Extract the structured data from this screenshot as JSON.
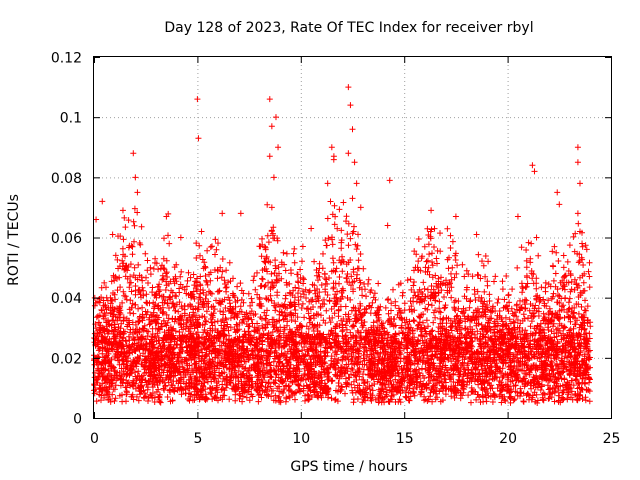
{
  "chart_data": {
    "type": "scatter",
    "title": "Day 128 of 2023, Rate Of TEC Index for receiver rbyl",
    "xlabel": "GPS time / hours",
    "ylabel": "ROTI / TECUs",
    "xlim": [
      0,
      25
    ],
    "ylim": [
      0,
      0.12
    ],
    "xticks": [
      0,
      5,
      10,
      15,
      20,
      25
    ],
    "yticks": [
      0,
      0.02,
      0.04,
      0.06,
      0.08,
      0.1,
      0.12
    ],
    "xtick_labels": [
      "0",
      "5",
      "10",
      "15",
      "20",
      "25"
    ],
    "ytick_labels": [
      "0",
      "0.02",
      "0.04",
      "0.06",
      "0.08",
      "0.1",
      "0.12"
    ],
    "grid": true,
    "marker": "+",
    "color": "#ff0000",
    "series": [
      {
        "name": "ROTI",
        "description_points": "dense cloud of '+' markers, baseline ~0.005-0.03 across 0-24 h, spikes listed below",
        "points": [
          [
            0.1,
            0.066
          ],
          [
            0.4,
            0.072
          ],
          [
            0.9,
            0.061
          ],
          [
            1.4,
            0.069
          ],
          [
            1.9,
            0.088
          ],
          [
            2.0,
            0.08
          ],
          [
            2.1,
            0.075
          ],
          [
            3.5,
            0.067
          ],
          [
            4.2,
            0.06
          ],
          [
            5.0,
            0.106
          ],
          [
            5.05,
            0.093
          ],
          [
            5.2,
            0.062
          ],
          [
            6.2,
            0.068
          ],
          [
            7.1,
            0.068
          ],
          [
            8.5,
            0.106
          ],
          [
            8.6,
            0.097
          ],
          [
            8.8,
            0.1
          ],
          [
            8.9,
            0.09
          ],
          [
            8.5,
            0.087
          ],
          [
            8.7,
            0.08
          ],
          [
            8.6,
            0.07
          ],
          [
            10.1,
            0.057
          ],
          [
            10.5,
            0.063
          ],
          [
            11.3,
            0.078
          ],
          [
            11.5,
            0.09
          ],
          [
            11.6,
            0.087
          ],
          [
            12.3,
            0.11
          ],
          [
            12.4,
            0.104
          ],
          [
            12.5,
            0.096
          ],
          [
            12.3,
            0.088
          ],
          [
            12.6,
            0.085
          ],
          [
            12.7,
            0.078
          ],
          [
            12.5,
            0.073
          ],
          [
            12.9,
            0.07
          ],
          [
            14.3,
            0.079
          ],
          [
            14.2,
            0.064
          ],
          [
            16.3,
            0.069
          ],
          [
            17.5,
            0.067
          ],
          [
            18.5,
            0.061
          ],
          [
            20.5,
            0.067
          ],
          [
            21.2,
            0.084
          ],
          [
            21.3,
            0.082
          ],
          [
            21.4,
            0.06
          ],
          [
            22.4,
            0.075
          ],
          [
            22.5,
            0.071
          ],
          [
            23.4,
            0.09
          ],
          [
            23.4,
            0.085
          ],
          [
            23.5,
            0.078
          ],
          [
            23.4,
            0.068
          ],
          [
            23.5,
            0.062
          ],
          [
            23.6,
            0.058
          ]
        ]
      }
    ]
  }
}
